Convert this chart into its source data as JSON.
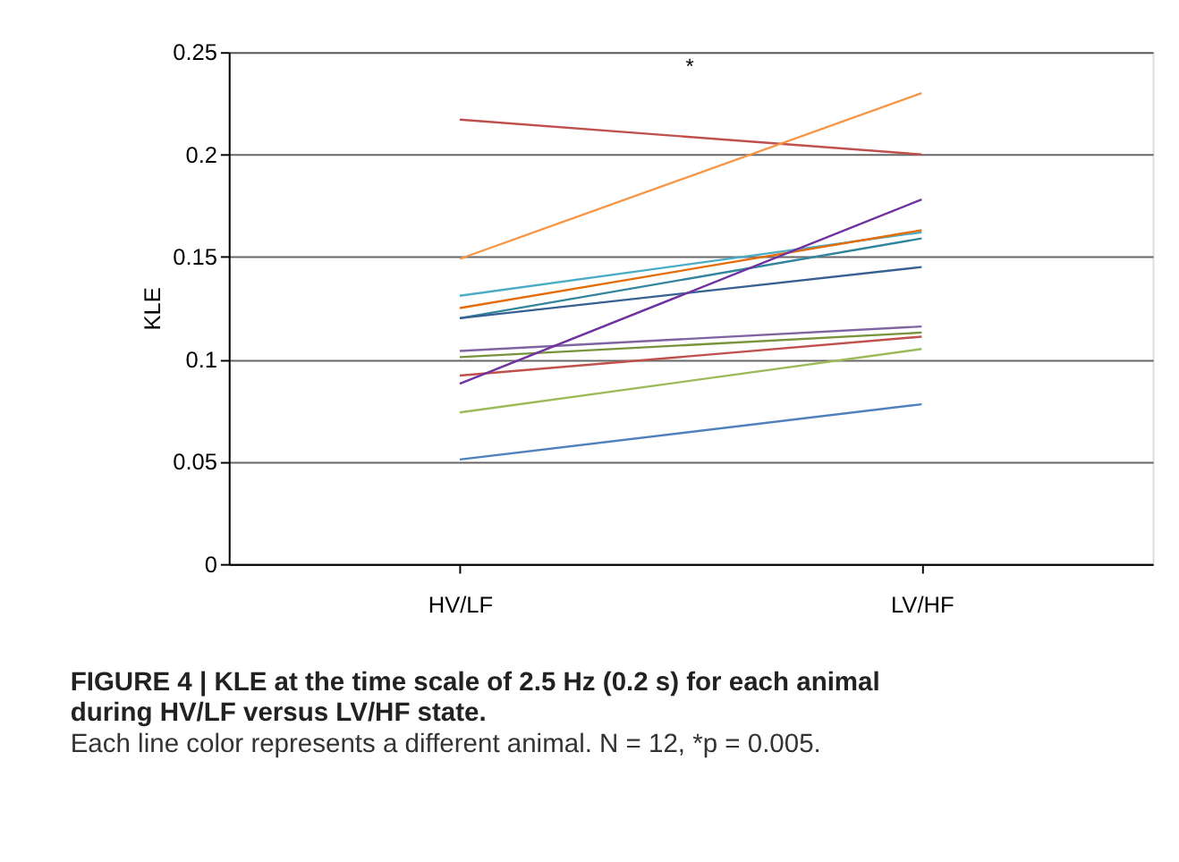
{
  "chart_data": {
    "type": "line",
    "title": "FIGURE 4 | KLE at the time scale of 2.5 Hz (0.2 s) for each animal during HV/LF versus LV/HF state.",
    "ylabel": "KLE",
    "categories": [
      "HV/LF",
      "LV/HF"
    ],
    "series": [
      {
        "color": "#c0504d",
        "values": [
          0.217,
          0.2
        ]
      },
      {
        "color": "#f79646",
        "values": [
          0.149,
          0.23
        ]
      },
      {
        "color": "#4bacc6",
        "values": [
          0.131,
          0.162
        ]
      },
      {
        "color": "#e46c0a",
        "values": [
          0.125,
          0.163
        ]
      },
      {
        "color": "#31859c",
        "values": [
          0.12,
          0.159
        ]
      },
      {
        "color": "#376092",
        "values": [
          0.12,
          0.145
        ]
      },
      {
        "color": "#8064a2",
        "values": [
          0.104,
          0.116
        ]
      },
      {
        "color": "#77933c",
        "values": [
          0.101,
          0.113
        ]
      },
      {
        "color": "#c0504d",
        "values": [
          0.092,
          0.111
        ]
      },
      {
        "color": "#7030a0",
        "values": [
          0.088,
          0.178
        ]
      },
      {
        "color": "#9bbb59",
        "values": [
          0.074,
          0.105
        ]
      },
      {
        "color": "#4f81bd",
        "values": [
          0.051,
          0.078
        ]
      }
    ],
    "ylim": [
      0,
      0.25
    ],
    "yticks": [
      0,
      0.05,
      0.1,
      0.15,
      0.2,
      0.25
    ],
    "grid": "y",
    "marker": "none",
    "line_style": "solid",
    "annotations": [
      "*",
      "Each line color represents a different animal. N = 12, *p = 0.005."
    ]
  }
}
